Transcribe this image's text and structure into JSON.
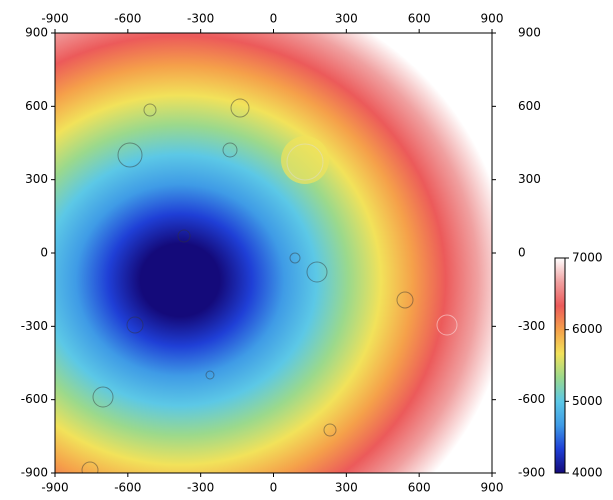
{
  "chart_data": {
    "type": "heatmap",
    "xlim": [
      -900,
      900
    ],
    "ylim": [
      -900,
      900
    ],
    "xticks": [
      -900,
      -600,
      -300,
      0,
      300,
      600,
      900
    ],
    "yticks": [
      -900,
      -600,
      -300,
      0,
      300,
      600,
      900
    ],
    "colorbar": {
      "lim": [
        4000,
        7000
      ],
      "ticks": [
        4000,
        5000,
        6000,
        7000
      ]
    },
    "colormap": [
      "#140a7a",
      "#1f3fd6",
      "#3f9be6",
      "#5cc8e6",
      "#9bd98c",
      "#f2e25a",
      "#f5a04a",
      "#ec5a5a",
      "#f0a0a0",
      "#ffffff"
    ]
  }
}
